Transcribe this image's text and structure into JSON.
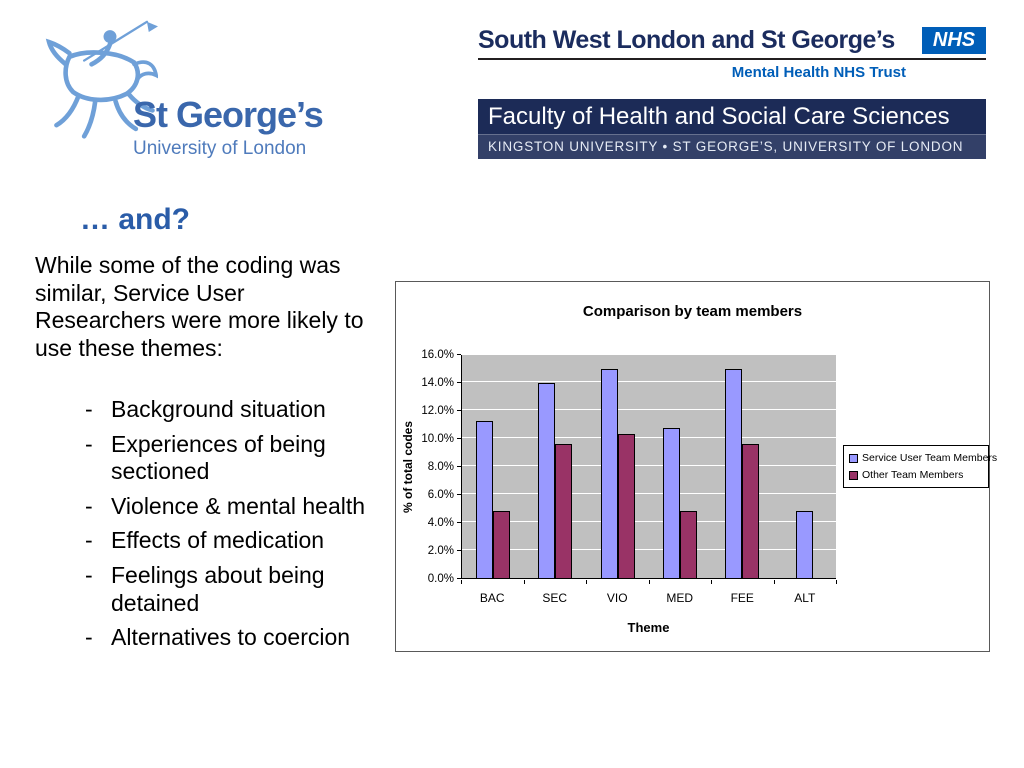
{
  "logos": {
    "st_georges": {
      "name": "St George’s",
      "subtitle": "University of London",
      "icon_color": "#6FA0D8"
    },
    "nhs": {
      "title": "South West London and St George’s",
      "badge": "NHS",
      "subtitle": "Mental Health NHS Trust",
      "badge_color": "#005EB8"
    },
    "faculty": {
      "line1": "Faculty of Health and Social Care Sciences",
      "line2": "KINGSTON UNIVERSITY • ST GEORGE’S, UNIVERSITY OF LONDON",
      "background": "#1C2B57"
    }
  },
  "content": {
    "heading": "… and?",
    "intro": "While some of the coding was similar, Service User Researchers were more likely to use these themes:",
    "bullet_char": "-",
    "themes": [
      "Background situation",
      "Experiences of being sectioned",
      "Violence & mental health",
      "Effects of medication",
      "Feelings about being detained",
      "Alternatives to coercion"
    ]
  },
  "chart_data": {
    "type": "bar",
    "title": "Comparison by team members",
    "xlabel": "Theme",
    "ylabel": "% of total codes",
    "categories": [
      "BAC",
      "SEC",
      "VIO",
      "MED",
      "FEE",
      "ALT"
    ],
    "series": [
      {
        "name": "Service User Team Members",
        "color": "#9999FF",
        "values": [
          11.2,
          13.9,
          14.9,
          10.7,
          14.9,
          4.8
        ]
      },
      {
        "name": "Other Team Members",
        "color": "#993366",
        "values": [
          4.8,
          9.6,
          10.3,
          4.8,
          9.6,
          0
        ]
      }
    ],
    "ylim": [
      0,
      16
    ],
    "ytick_step": 2,
    "ytick_suffix": "%",
    "grid": true,
    "legend_position": "right",
    "plot_bg": "#C0C0C0"
  },
  "colors": {
    "heading": "#2A5CA8",
    "stg_blue": "#3A67AC",
    "nhs_navy": "#1B2C5E",
    "nhs_blue": "#005EB8"
  }
}
